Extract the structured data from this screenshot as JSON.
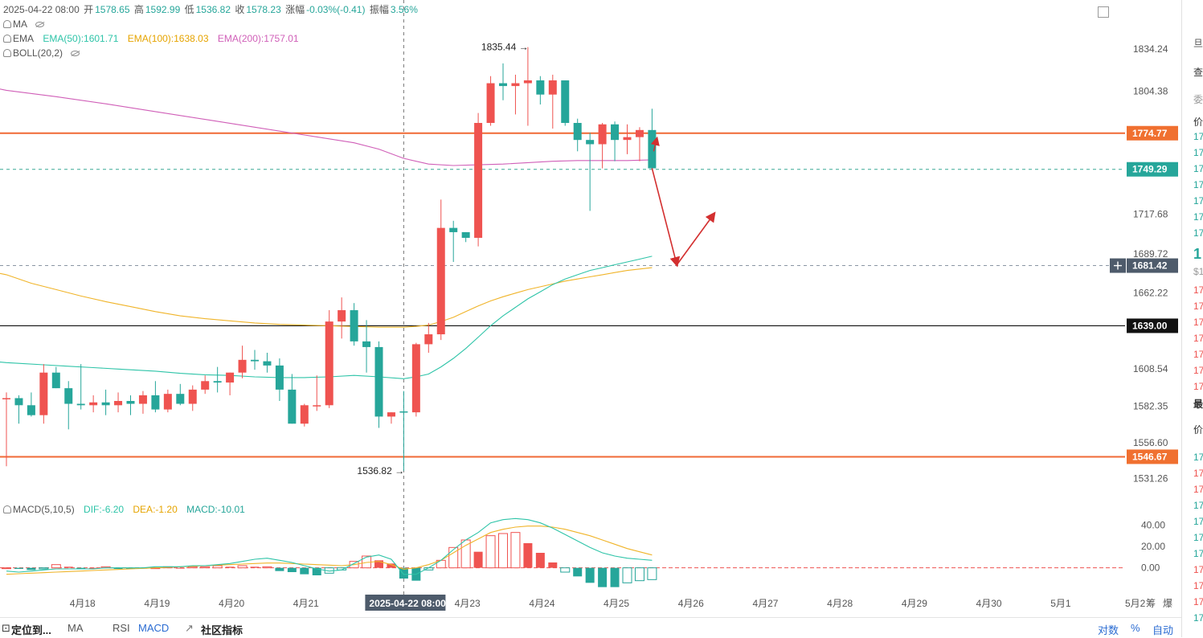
{
  "header": {
    "date": "2025-04-22 08:00",
    "open_label": "开",
    "open": "1578.65",
    "high_label": "高",
    "high": "1592.99",
    "low_label": "低",
    "low": "1536.82",
    "close_label": "收",
    "close": "1578.23",
    "change_label": "涨幅",
    "change": "-0.03%(-0.41)",
    "amp_label": "振幅",
    "amp": "3.56%"
  },
  "indicators": {
    "ma": "MA",
    "ema": "EMA",
    "ema50": "EMA(50):1601.71",
    "ema100": "EMA(100):1638.03",
    "ema200": "EMA(200):1757.01",
    "boll": "BOLL(20,2)",
    "macd": "MACD(5,10,5)",
    "dif": "DIF:-6.20",
    "dea": "DEA:-1.20",
    "macd_val": "MACD:-10.01"
  },
  "colors": {
    "up": "#ef5350",
    "down": "#26a69a",
    "ema50": "#2ec4a8",
    "ema100": "#f0b429",
    "ema200": "#d05fb8",
    "hline": "#f06a35",
    "hline_label": "#f07030",
    "black_line": "#111111"
  },
  "chart_data": {
    "type": "candlestick",
    "timeframe": "4h",
    "candles": [
      [
        1588,
        1592,
        1540,
        1588
      ],
      [
        1588,
        1590,
        1570,
        1583
      ],
      [
        1583,
        1592,
        1575,
        1576
      ],
      [
        1576,
        1612,
        1570,
        1606
      ],
      [
        1606,
        1610,
        1595,
        1595
      ],
      [
        1595,
        1600,
        1566,
        1584
      ],
      [
        1584,
        1612,
        1580,
        1583
      ],
      [
        1583,
        1590,
        1578,
        1585
      ],
      [
        1585,
        1594,
        1576,
        1583
      ],
      [
        1583,
        1592,
        1578,
        1586
      ],
      [
        1586,
        1590,
        1576,
        1584
      ],
      [
        1584,
        1593,
        1577,
        1590
      ],
      [
        1590,
        1600,
        1578,
        1580
      ],
      [
        1580,
        1594,
        1578,
        1591
      ],
      [
        1591,
        1598,
        1583,
        1584
      ],
      [
        1584,
        1597,
        1579,
        1594
      ],
      [
        1594,
        1604,
        1591,
        1600
      ],
      [
        1600,
        1610,
        1592,
        1599
      ],
      [
        1599,
        1606,
        1590,
        1606
      ],
      [
        1606,
        1625,
        1602,
        1615
      ],
      [
        1615,
        1622,
        1608,
        1614
      ],
      [
        1614,
        1620,
        1606,
        1611
      ],
      [
        1611,
        1616,
        1586,
        1594
      ],
      [
        1594,
        1605,
        1570,
        1570
      ],
      [
        1570,
        1584,
        1568,
        1583
      ],
      [
        1583,
        1604,
        1579,
        1583
      ],
      [
        1583,
        1650,
        1581,
        1642
      ],
      [
        1642,
        1659,
        1630,
        1650
      ],
      [
        1650,
        1655,
        1625,
        1628
      ],
      [
        1628,
        1643,
        1606,
        1624
      ],
      [
        1624,
        1628,
        1567,
        1575
      ],
      [
        1575,
        1578,
        1570,
        1578
      ],
      [
        1578.65,
        1592.99,
        1536.82,
        1578.23
      ],
      [
        1578,
        1627,
        1575,
        1626
      ],
      [
        1626,
        1641,
        1620,
        1633
      ],
      [
        1633,
        1728,
        1629,
        1708
      ],
      [
        1708,
        1713,
        1684,
        1705
      ],
      [
        1705,
        1705,
        1698,
        1701
      ],
      [
        1701,
        1789,
        1695,
        1782
      ],
      [
        1782,
        1815,
        1780,
        1810
      ],
      [
        1810,
        1824,
        1798,
        1808
      ],
      [
        1808,
        1816,
        1788,
        1810
      ],
      [
        1810,
        1835.44,
        1780,
        1812
      ],
      [
        1812,
        1815,
        1795,
        1802
      ],
      [
        1802,
        1816,
        1778,
        1812
      ],
      [
        1812,
        1812,
        1780,
        1782
      ],
      [
        1782,
        1785,
        1762,
        1770
      ],
      [
        1770,
        1775,
        1720,
        1767
      ],
      [
        1767,
        1782,
        1750,
        1781
      ],
      [
        1781,
        1783,
        1755,
        1770
      ],
      [
        1770,
        1781,
        1760,
        1772
      ],
      [
        1772,
        1779,
        1755,
        1777
      ],
      [
        1777,
        1792,
        1751,
        1750
      ]
    ],
    "ema50": [
      [
        0,
        1613
      ],
      [
        1,
        1612.5
      ],
      [
        3,
        1611.5
      ],
      [
        5,
        1610.5
      ],
      [
        7,
        1609.5
      ],
      [
        9,
        1608.5
      ],
      [
        12,
        1607
      ],
      [
        14,
        1605.5
      ],
      [
        16,
        1604.5
      ],
      [
        18,
        1604
      ],
      [
        20,
        1603
      ],
      [
        22,
        1602.5
      ],
      [
        24,
        1602.5
      ],
      [
        26,
        1603
      ],
      [
        28,
        1604
      ],
      [
        30,
        1603
      ],
      [
        32,
        1601.71
      ],
      [
        33,
        1603
      ],
      [
        34,
        1605
      ],
      [
        35,
        1610
      ],
      [
        36,
        1616
      ],
      [
        37,
        1623
      ],
      [
        38,
        1631
      ],
      [
        39,
        1639
      ],
      [
        40,
        1646
      ],
      [
        41,
        1652
      ],
      [
        42,
        1658
      ],
      [
        43,
        1663
      ],
      [
        44,
        1668
      ],
      [
        45,
        1672
      ],
      [
        46,
        1675
      ],
      [
        47,
        1678
      ],
      [
        48,
        1680
      ],
      [
        49,
        1682
      ],
      [
        50,
        1684
      ],
      [
        51,
        1686
      ],
      [
        52,
        1688
      ]
    ],
    "ema100": [
      [
        0,
        1675
      ],
      [
        2,
        1669
      ],
      [
        4,
        1664.5
      ],
      [
        6,
        1660
      ],
      [
        8,
        1656
      ],
      [
        10,
        1652.5
      ],
      [
        12,
        1649
      ],
      [
        14,
        1646
      ],
      [
        16,
        1644
      ],
      [
        18,
        1642.5
      ],
      [
        20,
        1641
      ],
      [
        22,
        1640
      ],
      [
        24,
        1639.5
      ],
      [
        26,
        1639
      ],
      [
        28,
        1638.5
      ],
      [
        30,
        1638
      ],
      [
        32,
        1638.03
      ],
      [
        33,
        1638.6
      ],
      [
        34,
        1639.5
      ],
      [
        35,
        1642
      ],
      [
        36,
        1645
      ],
      [
        37,
        1649
      ],
      [
        38,
        1653
      ],
      [
        39,
        1656.5
      ],
      [
        40,
        1659.5
      ],
      [
        41,
        1662
      ],
      [
        42,
        1664.5
      ],
      [
        43,
        1666.5
      ],
      [
        44,
        1668.5
      ],
      [
        45,
        1670.5
      ],
      [
        46,
        1672
      ],
      [
        47,
        1673.5
      ],
      [
        48,
        1675
      ],
      [
        49,
        1676.5
      ],
      [
        50,
        1678
      ],
      [
        51,
        1679
      ],
      [
        52,
        1680
      ]
    ],
    "ema200": [
      [
        0,
        1805
      ],
      [
        4,
        1800.5
      ],
      [
        8,
        1795.5
      ],
      [
        12,
        1790
      ],
      [
        16,
        1784.5
      ],
      [
        20,
        1779
      ],
      [
        24,
        1773.5
      ],
      [
        28,
        1768
      ],
      [
        30,
        1763.5
      ],
      [
        32,
        1757.01
      ],
      [
        34,
        1753
      ],
      [
        36,
        1752
      ],
      [
        38,
        1752.5
      ],
      [
        40,
        1753
      ],
      [
        42,
        1754
      ],
      [
        44,
        1755
      ],
      [
        46,
        1755.5
      ],
      [
        48,
        1755.5
      ],
      [
        50,
        1755.5
      ],
      [
        52,
        1756
      ]
    ],
    "y_ticks": [
      "1834.24",
      "1804.38",
      "1717.68",
      "1689.72",
      "1662.22",
      "1608.54",
      "1582.35",
      "1556.60",
      "1531.26"
    ],
    "y_range": [
      1522,
      1846
    ],
    "price_lines": [
      {
        "value": 1774.77,
        "label": "1774.77",
        "style": "orange"
      },
      {
        "value": 1749.29,
        "label": "1749.29",
        "style": "teal-dashed"
      },
      {
        "value": 1681.42,
        "label": "1681.42",
        "style": "gray-dashed"
      },
      {
        "value": 1639.0,
        "label": "1639.00",
        "style": "black"
      },
      {
        "value": 1546.67,
        "label": "1546.67",
        "style": "orange"
      }
    ],
    "annotations": [
      {
        "label": "1835.44",
        "index": 42,
        "value": 1835.44,
        "side": "left"
      },
      {
        "label": "1536.82",
        "index": 32,
        "value": 1536.82,
        "side": "left"
      }
    ],
    "crosshair_index": 32,
    "crosshair_label": "2025-04-22 08:00",
    "forecast_arrows": [
      {
        "from": [
          52,
          1750
        ],
        "to": [
          54,
          1682
        ]
      },
      {
        "from": [
          54,
          1682
        ],
        "to": [
          57,
          1718
        ]
      }
    ],
    "x_labels": [
      {
        "text": "4月18",
        "index": 6
      },
      {
        "text": "4月19",
        "index": 12
      },
      {
        "text": "4月20",
        "index": 18
      },
      {
        "text": "4月21",
        "index": 24
      },
      {
        "text": "4月23",
        "index": 37
      },
      {
        "text": "4月24",
        "index": 43
      },
      {
        "text": "4月25",
        "index": 49
      },
      {
        "text": "4月26",
        "index": 55
      },
      {
        "text": "4月27",
        "index": 61
      },
      {
        "text": "4月28",
        "index": 67
      },
      {
        "text": "4月29",
        "index": 73
      },
      {
        "text": "4月30",
        "index": 79
      },
      {
        "text": "5月1",
        "index": 85
      },
      {
        "text": "5月2",
        "index": 91
      }
    ],
    "macd_hist": [
      0,
      -1,
      -2,
      -1,
      3,
      1,
      -1,
      0,
      1,
      -1,
      -1,
      0,
      0,
      1,
      0,
      1,
      1,
      2,
      1,
      2,
      1,
      1,
      -3,
      -4,
      -6,
      -7,
      -5,
      -2,
      6,
      11,
      7,
      4,
      -10,
      -12,
      -2,
      7,
      19,
      26,
      15,
      30,
      32,
      33,
      23,
      14,
      5,
      -4,
      -8,
      -14,
      -18,
      -18,
      -14,
      -12,
      -11
    ],
    "macd_dif": [
      -3,
      -4,
      -3,
      -2,
      -1,
      -1,
      -1,
      -1,
      0,
      0,
      0,
      0,
      1,
      1,
      1,
      2,
      2,
      3,
      4,
      6,
      8,
      9,
      7,
      5,
      2,
      -1,
      -3,
      -2,
      4,
      10,
      12,
      8,
      -6.2,
      -6,
      0,
      7,
      17,
      26,
      33,
      42,
      45,
      46,
      45,
      42,
      37,
      31,
      25,
      19,
      14,
      11,
      9,
      8,
      7
    ],
    "macd_dea": [
      -6,
      -5.5,
      -5,
      -4.5,
      -4,
      -3.5,
      -3,
      -2.5,
      -2,
      -1.5,
      -1,
      -0.5,
      0,
      0.5,
      1,
      1.5,
      2,
      2.5,
      3,
      3.5,
      4,
      4.5,
      4.5,
      4,
      3.5,
      3,
      2.5,
      2,
      3,
      5,
      6,
      3,
      -1.2,
      0,
      3,
      7,
      14,
      21,
      27,
      33,
      36,
      38,
      39,
      39,
      38,
      36,
      33,
      30,
      26,
      22,
      18,
      15,
      12
    ],
    "macd_y_ticks": [
      "40.00",
      "20.00",
      "0.00"
    ],
    "macd_range": [
      -13,
      50
    ]
  },
  "bottombar": {
    "locate": "定位到...",
    "ma": "MA",
    "rsi": "RSI",
    "macd": "MACD",
    "community": "社区指标",
    "log": "对数",
    "pct": "%",
    "auto": "自动"
  },
  "rightpanel": {
    "t1": "旦",
    "t2": "查",
    "t3": "委",
    "t4": "价",
    "t5": "最",
    "t6": "价",
    "big": "1",
    "usd": "$1",
    "prices_green": [
      "17",
      "17",
      "17",
      "17",
      "17",
      "17",
      "17"
    ],
    "prices_red": [
      "17",
      "17",
      "17",
      "17",
      "17",
      "17",
      "17"
    ],
    "prices_mixed": [
      "17",
      "17",
      "17",
      "17",
      "17",
      "17",
      "17",
      "17",
      "17",
      "17",
      "17",
      "17"
    ]
  }
}
